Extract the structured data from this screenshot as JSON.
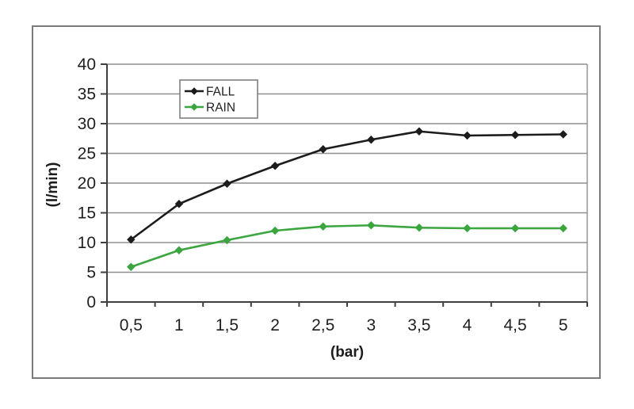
{
  "chart_data": {
    "type": "line",
    "title": "",
    "xlabel": "(bar)",
    "ylabel": "(l/min)",
    "categories": [
      "0,5",
      "1",
      "1,5",
      "2",
      "2,5",
      "3",
      "3,5",
      "4",
      "4,5",
      "5"
    ],
    "x_values": [
      0.5,
      1,
      1.5,
      2,
      2.5,
      3,
      3.5,
      4,
      4.5,
      5
    ],
    "series": [
      {
        "name": "FALL",
        "color": "#1c1c1c",
        "marker": "diamond",
        "values": [
          10.5,
          16.5,
          19.9,
          22.9,
          25.7,
          27.3,
          28.7,
          28.0,
          28.1,
          28.2
        ]
      },
      {
        "name": "RAIN",
        "color": "#3ba53f",
        "marker": "diamond",
        "values": [
          5.9,
          8.7,
          10.4,
          12.0,
          12.7,
          12.9,
          12.5,
          12.4,
          12.4,
          12.4
        ]
      }
    ],
    "ylim": [
      0,
      40
    ],
    "yticks": [
      0,
      5,
      10,
      15,
      20,
      25,
      30,
      35,
      40
    ],
    "grid": "horizontal",
    "legend_position": "top-center-inside"
  },
  "colors": {
    "background": "#ffffff",
    "plot_background": "#ffffff",
    "gridline": "#8f8f8f",
    "axis": "#3f3f3f",
    "frame_border": "#7b7b7b",
    "tick_label": "#1f1f1f",
    "legend_border": "#7f7f7f",
    "legend_background": "#ffffff"
  }
}
